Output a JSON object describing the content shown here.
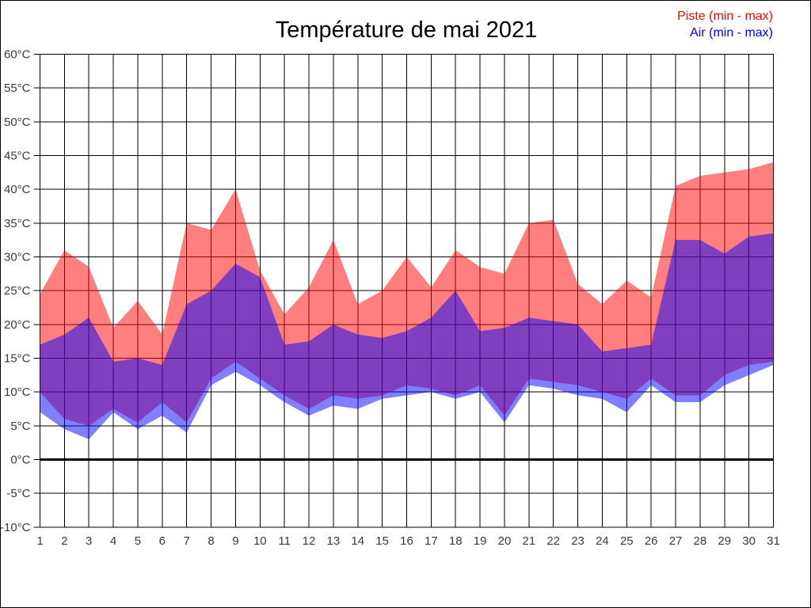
{
  "title": "Température de mai 2021",
  "legend": [
    {
      "id": "piste",
      "label": "Piste (min - max)",
      "color": "#ff0000"
    },
    {
      "id": "air",
      "label": "Air (min - max)",
      "color": "#0000ff"
    }
  ],
  "axes": {
    "y_unit": "°C",
    "y_min": -10,
    "y_max": 60,
    "y_tick_step": 5,
    "x_min_label": "1",
    "x_max_label": "31"
  },
  "chart_data": {
    "type": "area",
    "title": "Température de mai 2021",
    "xlabel": "",
    "ylabel": "",
    "x": [
      1,
      2,
      3,
      4,
      5,
      6,
      7,
      8,
      9,
      10,
      11,
      12,
      13,
      14,
      15,
      16,
      17,
      18,
      19,
      20,
      21,
      22,
      23,
      24,
      25,
      26,
      27,
      28,
      29,
      30,
      31
    ],
    "ylim": [
      -10,
      60
    ],
    "y_unit": "°C",
    "grid": true,
    "zero_line_emphasized": true,
    "legend_position": "top-right",
    "bands": [
      {
        "name": "Piste (min - max)",
        "color": "#ff0000",
        "fill_opacity": 0.5,
        "min": [
          10,
          6,
          5,
          7.5,
          5.5,
          8.5,
          5.5,
          12,
          14.5,
          12,
          9.5,
          7.5,
          9.5,
          9,
          9.5,
          11,
          10.5,
          9.5,
          11,
          6.5,
          12,
          11.5,
          11,
          10,
          9,
          12,
          9.5,
          9.5,
          12.5,
          14,
          14.5
        ],
        "max": [
          24.5,
          31,
          28.5,
          19.5,
          23.5,
          18.5,
          35,
          34,
          40,
          28,
          21.5,
          25.5,
          32.5,
          23,
          25,
          30,
          25.5,
          31,
          28.5,
          27.5,
          35,
          35.5,
          26,
          23,
          26.5,
          24,
          40.5,
          42,
          42.5,
          43,
          44
        ]
      },
      {
        "name": "Air (min - max)",
        "color": "#0000ff",
        "fill_opacity": 0.5,
        "min": [
          7,
          4.5,
          3,
          7,
          4.5,
          6.5,
          4,
          11,
          13,
          11,
          8.5,
          6.5,
          8,
          7.5,
          9,
          9.5,
          10,
          9,
          10,
          5.5,
          11,
          10.5,
          9.5,
          9,
          7,
          11,
          8.5,
          8.5,
          11,
          12.5,
          14
        ],
        "max": [
          17,
          18.5,
          21,
          14.5,
          15,
          14,
          23,
          25,
          29,
          27,
          17,
          17.5,
          20,
          18.5,
          18,
          19,
          21,
          25,
          19,
          19.5,
          21,
          20.5,
          20,
          16,
          16.5,
          17,
          32.5,
          32.5,
          30.5,
          33,
          33.5
        ]
      }
    ]
  }
}
